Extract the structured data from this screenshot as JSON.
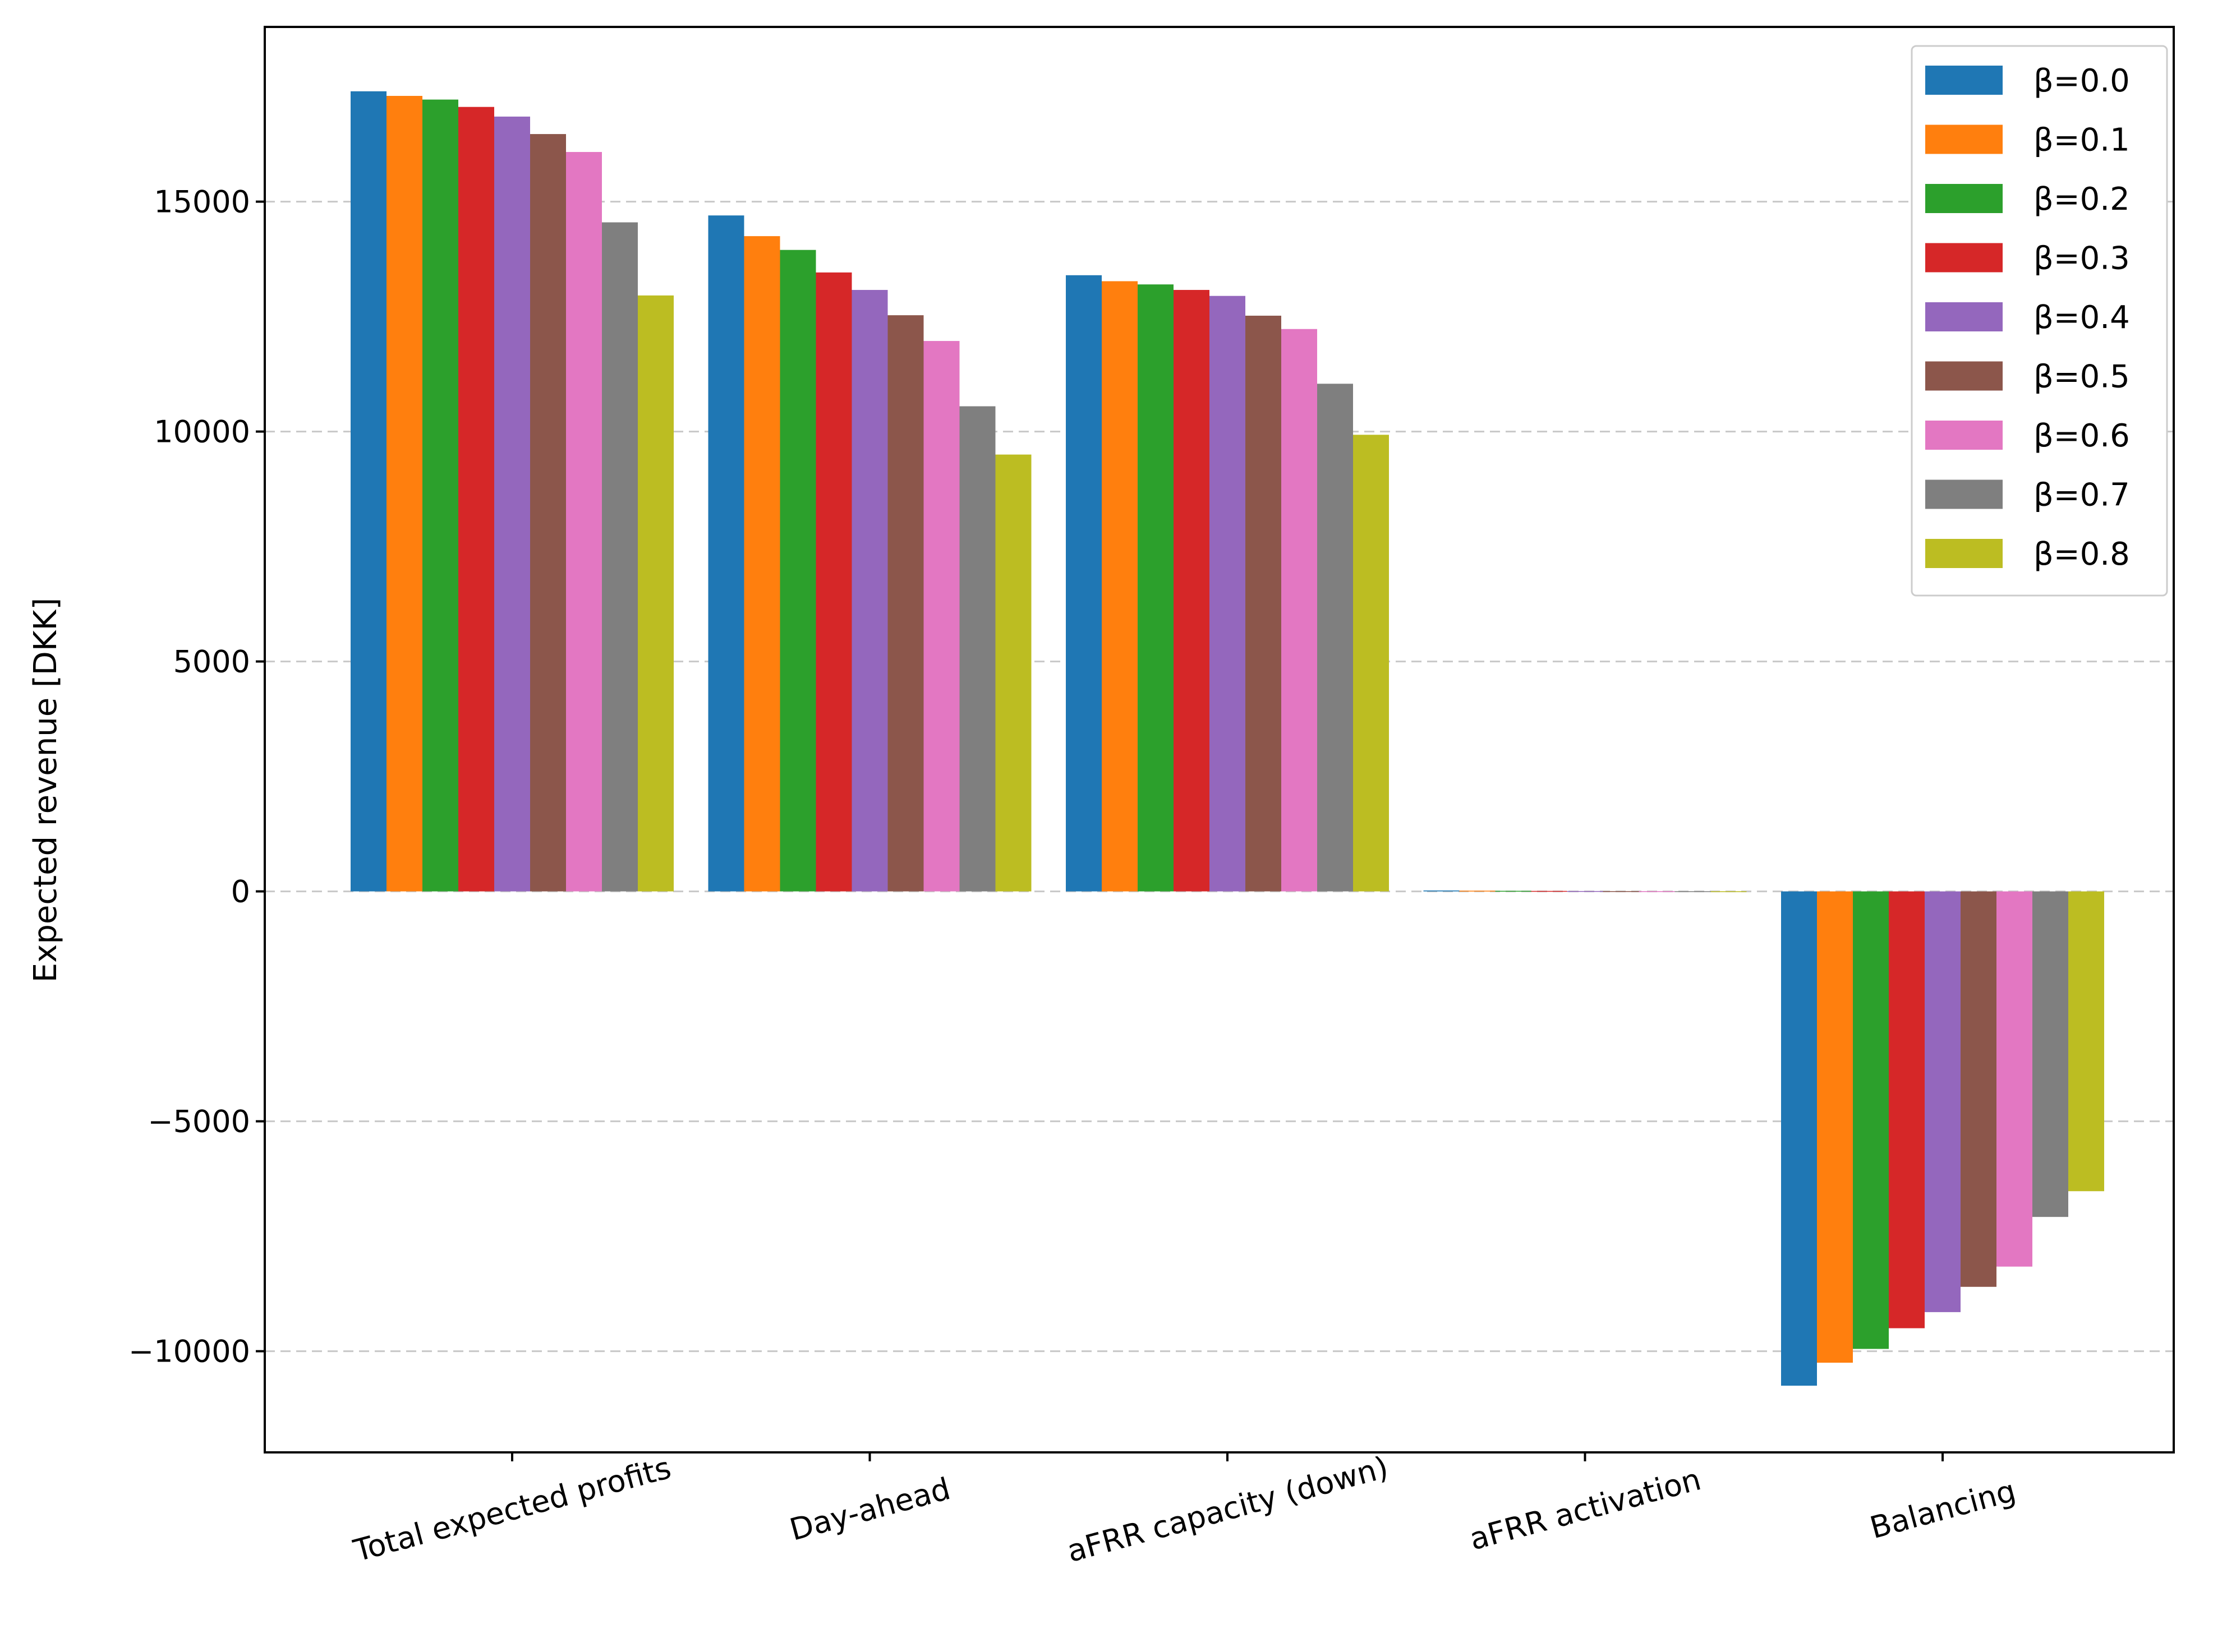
{
  "chart_data": {
    "type": "bar",
    "categories": [
      "Total expected profits",
      "Day-ahead",
      "aFRR capacity (down)",
      "aFRR activation",
      "Balancing"
    ],
    "ylabel": "Expected revenue [DKK]",
    "xlabel": "",
    "ylim": [
      -12200,
      18800
    ],
    "yticks": [
      -10000,
      -5000,
      0,
      5000,
      10000,
      15000
    ],
    "ytick_labels": [
      "−10000",
      "−5000",
      "0",
      "5000",
      "10000",
      "15000"
    ],
    "grid": "horizontal dashed",
    "legend_position": "top-right",
    "series": [
      {
        "name": "β=0.0",
        "color": "#1f77b4",
        "values": [
          17400,
          14700,
          13400,
          20,
          -10750
        ]
      },
      {
        "name": "β=0.1",
        "color": "#ff7f0e",
        "values": [
          17300,
          14250,
          13270,
          15,
          -10250
        ]
      },
      {
        "name": "β=0.2",
        "color": "#2ca02c",
        "values": [
          17220,
          13950,
          13200,
          12,
          -9950
        ]
      },
      {
        "name": "β=0.3",
        "color": "#d62728",
        "values": [
          17060,
          13460,
          13080,
          10,
          -9500
        ]
      },
      {
        "name": "β=0.4",
        "color": "#9467bd",
        "values": [
          16850,
          13080,
          12950,
          8,
          -9150
        ]
      },
      {
        "name": "β=0.5",
        "color": "#8c564b",
        "values": [
          16470,
          12530,
          12520,
          6,
          -8600
        ]
      },
      {
        "name": "β=0.6",
        "color": "#e377c2",
        "values": [
          16080,
          11970,
          12230,
          5,
          -8160
        ]
      },
      {
        "name": "β=0.7",
        "color": "#7f7f7f",
        "values": [
          14550,
          10550,
          11040,
          4,
          -7080
        ]
      },
      {
        "name": "β=0.8",
        "color": "#bcbd22",
        "values": [
          12960,
          9500,
          9930,
          3,
          -6520
        ]
      }
    ]
  }
}
